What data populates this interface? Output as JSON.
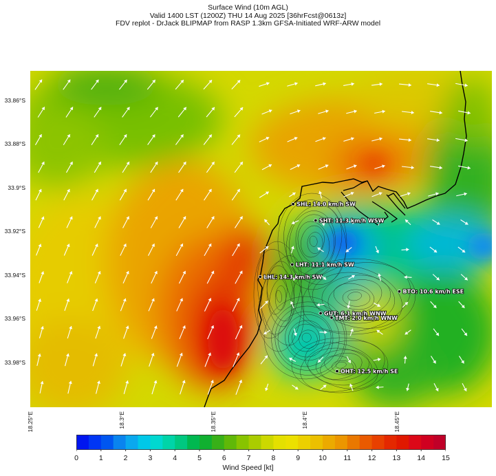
{
  "title": {
    "line1": "Surface Wind (10m AGL)",
    "line2": "Valid 1400 LST (1200Z) THU 14 Aug 2025 [36hrFcst@0613z]",
    "line3": "FDV replot - DrJack BLIPMAP from RASP 1.3km GFSA-Initiated WRF-ARW model"
  },
  "axes": {
    "lat_ticks": [
      "33.86°S",
      "33.88°S",
      "33.9°S",
      "33.92°S",
      "33.94°S",
      "33.96°S",
      "33.98°S"
    ],
    "lat_values": [
      -33.86,
      -33.88,
      -33.9,
      -33.92,
      -33.94,
      -33.96,
      -33.98
    ],
    "lon_ticks": [
      "18.25°E",
      "18.3°E",
      "18.35°E",
      "18.4°E",
      "18.45°E"
    ],
    "lon_values": [
      18.25,
      18.3,
      18.35,
      18.4,
      18.45
    ],
    "lon_range": [
      18.25,
      18.502
    ],
    "lat_range": [
      -33.8465,
      -34.0005
    ]
  },
  "stations": [
    {
      "code": "SHL",
      "label": "SHL: 14.0 km/h SW",
      "lon": 18.3935,
      "lat": -33.9075
    },
    {
      "code": "SHT",
      "label": "SHT: 11.3 km/h WSW",
      "lon": 18.4058,
      "lat": -33.915
    },
    {
      "code": "LHT",
      "label": "LHT: 11.1 km/h SW",
      "lon": 18.393,
      "lat": -33.9352
    },
    {
      "code": "LHL",
      "label": "LHL: 14.3 km/h SW",
      "lon": 18.3755,
      "lat": -33.9408
    },
    {
      "code": "BTO",
      "label": "BTO: 10.6 km/h ESE",
      "lon": 18.4515,
      "lat": -33.9475
    },
    {
      "code": "GUT",
      "label": "GUT: 6.1 km/h WNW",
      "lon": 18.4085,
      "lat": -33.9575
    },
    {
      "code": "TMT",
      "label": "TMT: 2.0 km/h WNW",
      "lon": 18.4145,
      "lat": -33.9595
    },
    {
      "code": "OHT",
      "label": "OHT: 12.5 km/h SE",
      "lon": 18.4175,
      "lat": -33.984
    }
  ],
  "colorbar": {
    "label": "Wind Speed [kt]",
    "ticks": [
      "0",
      "1",
      "2",
      "3",
      "4",
      "5",
      "6",
      "7",
      "8",
      "9",
      "10",
      "11",
      "12",
      "13",
      "14",
      "15"
    ],
    "min": 0,
    "max": 15,
    "step": 0.5,
    "colors": [
      "#0016f0",
      "#0036f4",
      "#0056f0",
      "#0a84ee",
      "#0aa8ee",
      "#00c8e8",
      "#00d8d0",
      "#00d4a8",
      "#00c880",
      "#00b850",
      "#10b030",
      "#38b018",
      "#60b808",
      "#88c400",
      "#aacc00",
      "#ccd800",
      "#e4e000",
      "#ece000",
      "#ecd000",
      "#ecc000",
      "#ecaa00",
      "#ec9600",
      "#ea7800",
      "#ea5a00",
      "#e84000",
      "#e42800",
      "#e01800",
      "#dc0818",
      "#d00020",
      "#c00028"
    ]
  },
  "colors": {
    "coast": "#000000",
    "vector": "#ffffff",
    "contour": "#1a1a1a",
    "label": "#ffffff"
  }
}
